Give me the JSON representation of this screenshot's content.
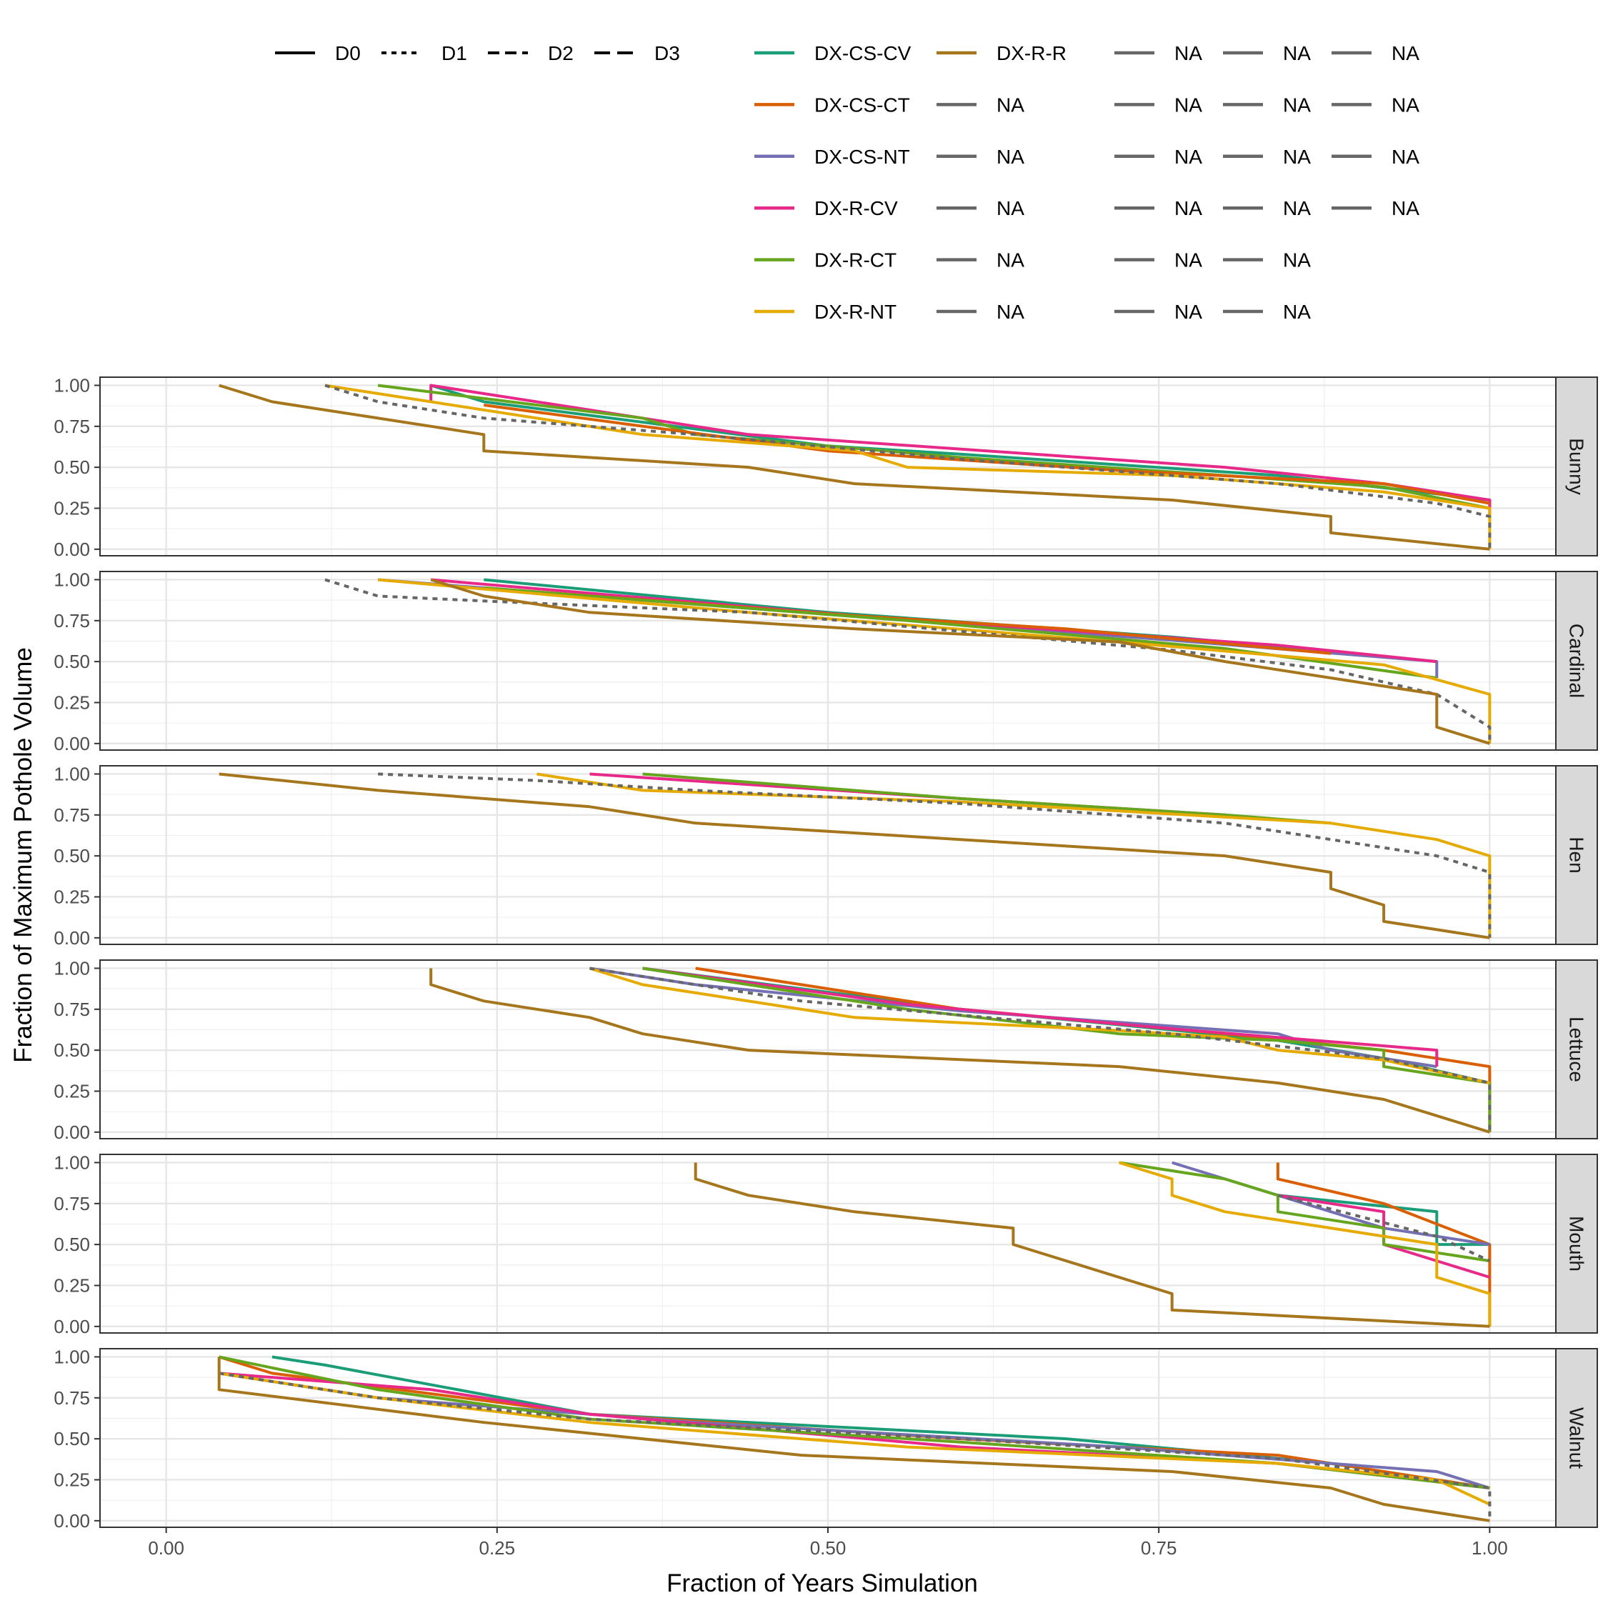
{
  "chart_data": {
    "type": "line",
    "xlabel": "Fraction of Years Simulation",
    "ylabel": "Fraction of Maximum Pothole Volume",
    "xlim": [
      -0.05,
      1.05
    ],
    "ylim": [
      -0.04,
      1.05
    ],
    "xticks": [
      0,
      0.25,
      0.5,
      0.75,
      1
    ],
    "xtick_labels": [
      "0.00",
      "0.25",
      "0.50",
      "0.75",
      "1.00"
    ],
    "yticks": [
      0,
      0.25,
      0.5,
      0.75,
      1
    ],
    "ytick_labels": [
      "0.00",
      "0.25",
      "0.50",
      "0.75",
      "1.00"
    ],
    "grid": true,
    "facets": [
      "Bunny",
      "Cardinal",
      "Hen",
      "Lettuce",
      "Mouth",
      "Walnut"
    ],
    "linetype_legend": [
      {
        "label": "D0",
        "dash": "solid"
      },
      {
        "label": "D1",
        "dash": "dotted"
      },
      {
        "label": "D2",
        "dash": "dashed"
      },
      {
        "label": "D3",
        "dash": "longdash"
      }
    ],
    "color_legend": [
      [
        "DX-CS-CV",
        "DX-R-R",
        "NA",
        "NA",
        "NA"
      ],
      [
        "DX-CS-CT",
        "NA",
        "NA",
        "NA",
        "NA"
      ],
      [
        "DX-CS-NT",
        "NA",
        "NA",
        "NA",
        "NA"
      ],
      [
        "DX-R-CV",
        "NA",
        "NA",
        "NA",
        "NA"
      ],
      [
        "DX-R-CT",
        "NA",
        "NA",
        "NA"
      ],
      [
        "DX-R-NT",
        "NA",
        "NA",
        "NA"
      ]
    ],
    "colors": {
      "DX-CS-CV": "#1B9E77",
      "DX-CS-CT": "#D95F02",
      "DX-CS-NT": "#7570B3",
      "DX-R-CV": "#E7298A",
      "DX-R-CT": "#66A61E",
      "DX-R-NT": "#E6AB02",
      "DX-R-R": "#A6761D",
      "NA": "#666666"
    },
    "series": [
      {
        "facet": "Bunny",
        "name": "DX-CS-CV",
        "dash": "solid",
        "x": [
          0.2,
          0.24,
          0.5,
          0.6,
          0.84,
          1.0,
          1.0
        ],
        "y": [
          1.0,
          0.9,
          0.63,
          0.58,
          0.45,
          0.3,
          0.2
        ]
      },
      {
        "facet": "Bunny",
        "name": "DX-R-CV",
        "dash": "solid",
        "x": [
          0.2,
          0.2,
          0.44,
          0.8,
          0.92,
          1.0,
          1.0
        ],
        "y": [
          0.9,
          1.0,
          0.7,
          0.5,
          0.4,
          0.3,
          0.2
        ]
      },
      {
        "facet": "Bunny",
        "name": "DX-R-CT",
        "dash": "solid",
        "x": [
          0.16,
          0.36,
          0.4,
          0.6,
          0.8,
          0.92,
          1.0
        ],
        "y": [
          1.0,
          0.8,
          0.7,
          0.56,
          0.45,
          0.38,
          0.25
        ]
      },
      {
        "facet": "Bunny",
        "name": "DX-CS-CT",
        "dash": "solid",
        "x": [
          0.24,
          0.5,
          0.72,
          0.92,
          1.0
        ],
        "y": [
          0.88,
          0.6,
          0.48,
          0.4,
          0.28
        ]
      },
      {
        "facet": "Bunny",
        "name": "DX-R-NT",
        "dash": "solid",
        "x": [
          0.12,
          0.36,
          0.52,
          0.56,
          0.76,
          0.92,
          1.0,
          1.0
        ],
        "y": [
          1.0,
          0.7,
          0.6,
          0.5,
          0.45,
          0.35,
          0.25,
          0.0
        ]
      },
      {
        "facet": "Bunny",
        "name": "NA",
        "dash": "dotted",
        "x": [
          0.12,
          0.16,
          0.24,
          0.4,
          0.6,
          0.84,
          0.96,
          1.0,
          1.0
        ],
        "y": [
          1.0,
          0.9,
          0.8,
          0.7,
          0.55,
          0.4,
          0.28,
          0.2,
          0.0
        ]
      },
      {
        "facet": "Bunny",
        "name": "DX-R-R",
        "dash": "solid",
        "x": [
          0.04,
          0.08,
          0.24,
          0.24,
          0.44,
          0.52,
          0.76,
          0.88,
          0.88,
          1.0
        ],
        "y": [
          1.0,
          0.9,
          0.7,
          0.6,
          0.5,
          0.4,
          0.3,
          0.2,
          0.1,
          0.0
        ]
      },
      {
        "facet": "Cardinal",
        "name": "DX-CS-CV",
        "dash": "solid",
        "x": [
          0.24,
          0.5,
          0.76,
          0.96
        ],
        "y": [
          1.0,
          0.8,
          0.65,
          0.5
        ]
      },
      {
        "facet": "Cardinal",
        "name": "DX-CS-NT",
        "dash": "solid",
        "x": [
          0.16,
          0.4,
          0.76,
          0.96,
          0.96
        ],
        "y": [
          1.0,
          0.85,
          0.63,
          0.5,
          0.4
        ]
      },
      {
        "facet": "Cardinal",
        "name": "DX-R-CV",
        "dash": "solid",
        "x": [
          0.2,
          0.52,
          0.84,
          0.96
        ],
        "y": [
          1.0,
          0.78,
          0.6,
          0.5
        ]
      },
      {
        "facet": "Cardinal",
        "name": "DX-CS-CT",
        "dash": "solid",
        "x": [
          0.24,
          0.52,
          0.68,
          0.88
        ],
        "y": [
          0.95,
          0.78,
          0.7,
          0.55
        ]
      },
      {
        "facet": "Cardinal",
        "name": "DX-R-CT",
        "dash": "solid",
        "x": [
          0.24,
          0.56,
          0.8,
          0.96
        ],
        "y": [
          0.95,
          0.75,
          0.58,
          0.4
        ]
      },
      {
        "facet": "Cardinal",
        "name": "DX-R-NT",
        "dash": "solid",
        "x": [
          0.16,
          0.44,
          0.72,
          0.92,
          1.0,
          1.0
        ],
        "y": [
          1.0,
          0.8,
          0.62,
          0.48,
          0.3,
          0.0
        ]
      },
      {
        "facet": "Cardinal",
        "name": "NA",
        "dash": "dotted",
        "x": [
          0.12,
          0.16,
          0.24,
          0.44,
          0.76,
          0.88,
          0.96,
          1.0,
          1.0
        ],
        "y": [
          1.0,
          0.9,
          0.87,
          0.8,
          0.57,
          0.45,
          0.3,
          0.1,
          0.0
        ]
      },
      {
        "facet": "Cardinal",
        "name": "DX-R-R",
        "dash": "solid",
        "x": [
          0.2,
          0.24,
          0.32,
          0.52,
          0.72,
          0.8,
          0.96,
          0.96,
          1.0
        ],
        "y": [
          1.0,
          0.9,
          0.8,
          0.7,
          0.62,
          0.5,
          0.3,
          0.1,
          0.0
        ]
      },
      {
        "facet": "Hen",
        "name": "DX-R-CV",
        "dash": "solid",
        "x": [
          0.32,
          0.6,
          0.8
        ],
        "y": [
          1.0,
          0.85,
          0.75
        ]
      },
      {
        "facet": "Hen",
        "name": "DX-R-CT",
        "dash": "solid",
        "x": [
          0.36,
          0.6,
          0.8,
          0.88
        ],
        "y": [
          1.0,
          0.85,
          0.75,
          0.7
        ]
      },
      {
        "facet": "Hen",
        "name": "DX-R-NT",
        "dash": "solid",
        "x": [
          0.28,
          0.36,
          0.6,
          0.88,
          0.96,
          1.0,
          1.0
        ],
        "y": [
          1.0,
          0.9,
          0.83,
          0.7,
          0.6,
          0.5,
          0.0
        ]
      },
      {
        "facet": "Hen",
        "name": "NA",
        "dash": "dotted",
        "x": [
          0.16,
          0.28,
          0.4,
          0.6,
          0.8,
          0.88,
          0.96,
          1.0,
          1.0
        ],
        "y": [
          1.0,
          0.96,
          0.9,
          0.82,
          0.7,
          0.6,
          0.5,
          0.4,
          0.0
        ]
      },
      {
        "facet": "Hen",
        "name": "DX-R-R",
        "dash": "solid",
        "x": [
          0.04,
          0.16,
          0.32,
          0.4,
          0.6,
          0.8,
          0.88,
          0.88,
          0.92,
          0.92,
          1.0
        ],
        "y": [
          1.0,
          0.9,
          0.8,
          0.7,
          0.6,
          0.5,
          0.4,
          0.3,
          0.2,
          0.1,
          0.0
        ]
      },
      {
        "facet": "Lettuce",
        "name": "DX-CS-CV",
        "dash": "solid",
        "x": [
          0.36,
          0.6,
          0.84,
          0.92,
          1.0
        ],
        "y": [
          1.0,
          0.75,
          0.56,
          0.45,
          0.3
        ]
      },
      {
        "facet": "Lettuce",
        "name": "DX-CS-CT",
        "dash": "solid",
        "x": [
          0.4,
          0.6,
          0.8,
          0.92,
          1.0,
          1.0
        ],
        "y": [
          1.0,
          0.75,
          0.6,
          0.5,
          0.4,
          0.0
        ]
      },
      {
        "facet": "Lettuce",
        "name": "DX-CS-NT",
        "dash": "solid",
        "x": [
          0.32,
          0.4,
          0.6,
          0.84,
          0.88,
          0.96
        ],
        "y": [
          1.0,
          0.9,
          0.74,
          0.6,
          0.5,
          0.4
        ]
      },
      {
        "facet": "Lettuce",
        "name": "DX-R-CV",
        "dash": "solid",
        "x": [
          0.36,
          0.56,
          0.76,
          0.96,
          0.96
        ],
        "y": [
          1.0,
          0.78,
          0.63,
          0.5,
          0.4
        ]
      },
      {
        "facet": "Lettuce",
        "name": "DX-R-CT",
        "dash": "solid",
        "x": [
          0.36,
          0.56,
          0.72,
          0.84,
          0.92,
          0.92,
          1.0,
          1.0
        ],
        "y": [
          1.0,
          0.75,
          0.6,
          0.56,
          0.5,
          0.4,
          0.3,
          0.0
        ]
      },
      {
        "facet": "Lettuce",
        "name": "DX-R-NT",
        "dash": "solid",
        "x": [
          0.32,
          0.36,
          0.52,
          0.72,
          0.8,
          0.84,
          0.92,
          1.0
        ],
        "y": [
          1.0,
          0.9,
          0.7,
          0.62,
          0.58,
          0.5,
          0.44,
          0.3
        ]
      },
      {
        "facet": "Lettuce",
        "name": "NA",
        "dash": "dotted",
        "x": [
          0.32,
          0.48,
          0.76,
          0.92,
          1.0,
          1.0
        ],
        "y": [
          1.0,
          0.8,
          0.6,
          0.45,
          0.3,
          0.0
        ]
      },
      {
        "facet": "Lettuce",
        "name": "DX-R-R",
        "dash": "solid",
        "x": [
          0.2,
          0.2,
          0.24,
          0.32,
          0.36,
          0.44,
          0.72,
          0.84,
          0.92,
          1.0
        ],
        "y": [
          1.0,
          0.9,
          0.8,
          0.7,
          0.6,
          0.5,
          0.4,
          0.3,
          0.2,
          0.0
        ]
      },
      {
        "facet": "Mouth",
        "name": "DX-CS-CV",
        "dash": "solid",
        "x": [
          0.84,
          0.96,
          0.96,
          1.0
        ],
        "y": [
          0.8,
          0.7,
          0.5,
          0.5
        ]
      },
      {
        "facet": "Mouth",
        "name": "DX-CS-CT",
        "dash": "solid",
        "x": [
          0.84,
          0.84,
          0.92,
          1.0,
          1.0
        ],
        "y": [
          1.0,
          0.9,
          0.75,
          0.5,
          0.0
        ]
      },
      {
        "facet": "Mouth",
        "name": "DX-CS-NT",
        "dash": "solid",
        "x": [
          0.76,
          0.84,
          0.92,
          1.0
        ],
        "y": [
          1.0,
          0.8,
          0.6,
          0.5
        ]
      },
      {
        "facet": "Mouth",
        "name": "DX-R-CV",
        "dash": "solid",
        "x": [
          0.84,
          0.92,
          0.92,
          1.0
        ],
        "y": [
          0.8,
          0.7,
          0.5,
          0.3
        ]
      },
      {
        "facet": "Mouth",
        "name": "DX-R-CT",
        "dash": "solid",
        "x": [
          0.72,
          0.8,
          0.84,
          0.84,
          0.92,
          0.92,
          1.0
        ],
        "y": [
          1.0,
          0.9,
          0.8,
          0.7,
          0.6,
          0.5,
          0.4
        ]
      },
      {
        "facet": "Mouth",
        "name": "DX-R-NT",
        "dash": "solid",
        "x": [
          0.72,
          0.76,
          0.76,
          0.8,
          0.96,
          0.96,
          1.0,
          1.0
        ],
        "y": [
          1.0,
          0.9,
          0.8,
          0.7,
          0.5,
          0.3,
          0.2,
          0.0
        ]
      },
      {
        "facet": "Mouth",
        "name": "NA",
        "dash": "dotted",
        "x": [
          0.84,
          0.96,
          1.0
        ],
        "y": [
          0.8,
          0.55,
          0.4
        ]
      },
      {
        "facet": "Mouth",
        "name": "DX-R-R",
        "dash": "solid",
        "x": [
          0.4,
          0.4,
          0.44,
          0.52,
          0.64,
          0.64,
          0.76,
          0.76,
          1.0
        ],
        "y": [
          1.0,
          0.9,
          0.8,
          0.7,
          0.6,
          0.5,
          0.2,
          0.1,
          0.0
        ]
      },
      {
        "facet": "Walnut",
        "name": "DX-CS-CV",
        "dash": "solid",
        "x": [
          0.08,
          0.12,
          0.32,
          0.68,
          0.88,
          1.0
        ],
        "y": [
          1.0,
          0.95,
          0.65,
          0.5,
          0.35,
          0.2
        ]
      },
      {
        "facet": "Walnut",
        "name": "DX-CS-CT",
        "dash": "solid",
        "x": [
          0.04,
          0.08,
          0.32,
          0.6,
          0.84,
          0.92,
          1.0
        ],
        "y": [
          1.0,
          0.9,
          0.65,
          0.5,
          0.4,
          0.3,
          0.2
        ]
      },
      {
        "facet": "Walnut",
        "name": "DX-CS-NT",
        "dash": "solid",
        "x": [
          0.04,
          0.16,
          0.4,
          0.72,
          0.88,
          0.96,
          1.0
        ],
        "y": [
          0.9,
          0.75,
          0.6,
          0.45,
          0.35,
          0.3,
          0.2
        ]
      },
      {
        "facet": "Walnut",
        "name": "DX-R-CV",
        "dash": "solid",
        "x": [
          0.04,
          0.2,
          0.32,
          0.6,
          0.84,
          1.0
        ],
        "y": [
          0.9,
          0.8,
          0.65,
          0.45,
          0.35,
          0.2
        ]
      },
      {
        "facet": "Walnut",
        "name": "DX-R-CT",
        "dash": "solid",
        "x": [
          0.04,
          0.16,
          0.32,
          0.6,
          0.84,
          1.0
        ],
        "y": [
          1.0,
          0.8,
          0.62,
          0.48,
          0.35,
          0.2
        ]
      },
      {
        "facet": "Walnut",
        "name": "DX-R-NT",
        "dash": "solid",
        "x": [
          0.04,
          0.16,
          0.32,
          0.56,
          0.84,
          0.96,
          1.0
        ],
        "y": [
          0.9,
          0.75,
          0.6,
          0.45,
          0.35,
          0.25,
          0.1
        ]
      },
      {
        "facet": "Walnut",
        "name": "NA",
        "dash": "dotted",
        "x": [
          0.04,
          0.16,
          0.32,
          0.6,
          0.84,
          1.0,
          1.0
        ],
        "y": [
          0.9,
          0.75,
          0.62,
          0.5,
          0.38,
          0.2,
          0.0
        ]
      },
      {
        "facet": "Walnut",
        "name": "DX-R-R",
        "dash": "solid",
        "x": [
          0.04,
          0.04,
          0.24,
          0.48,
          0.76,
          0.88,
          0.92,
          1.0
        ],
        "y": [
          1.0,
          0.8,
          0.6,
          0.4,
          0.3,
          0.2,
          0.1,
          0.0
        ]
      }
    ]
  }
}
